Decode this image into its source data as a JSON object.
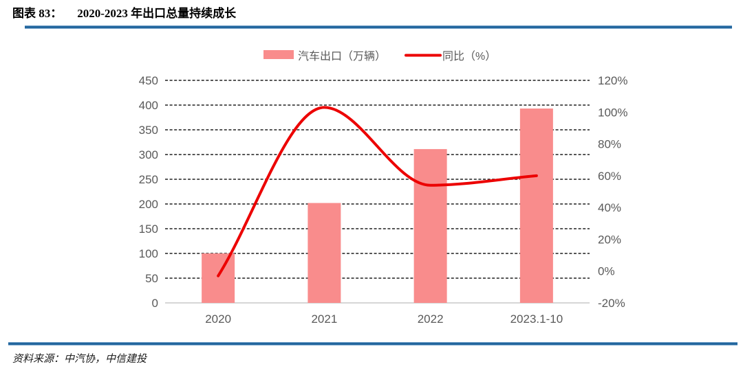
{
  "header": {
    "figure_label": "图表 83：",
    "title": "2020-2023 年出口总量持续成长"
  },
  "footer": {
    "source": "资料来源：中汽协，中信建投"
  },
  "colors": {
    "bar": "#F98C8C",
    "line": "#EC0000",
    "rule_blue": "#24679E",
    "axis_text": "#595959",
    "grid_dash": "#1F1F1F",
    "baseline": "#C8C8C8"
  },
  "chart_data": {
    "type": "combo (bar + smooth line, dual axis)",
    "title": "2020-2023 年出口总量持续成长",
    "categories": [
      "2020",
      "2021",
      "2022",
      "2023.1-10"
    ],
    "series": [
      {
        "name": "汽车出口（万辆）",
        "type": "bar",
        "axis": "left",
        "values": [
          100,
          202,
          311,
          393
        ]
      },
      {
        "name": "同比（%）",
        "type": "line",
        "axis": "right",
        "values": [
          -3,
          103,
          54,
          60
        ]
      }
    ],
    "left_axis": {
      "min": 0,
      "max": 450,
      "step": 50,
      "tick_labels": [
        "450",
        "400",
        "350",
        "300",
        "250",
        "200",
        "150",
        "100",
        "50",
        "0"
      ]
    },
    "right_axis": {
      "min": -20,
      "max": 120,
      "step": 20,
      "tick_labels": [
        "120%",
        "100%",
        "80%",
        "60%",
        "40%",
        "20%",
        "0%",
        "-20%"
      ]
    },
    "legend_position": "top-center",
    "grid": "dashed horizontal gridlines, solid light baseline at 0"
  }
}
